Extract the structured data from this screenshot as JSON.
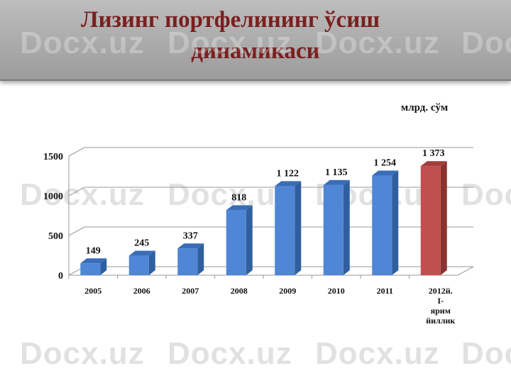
{
  "slide": {
    "title_line1": "Лизинг  портфелининг ўсиш",
    "title_line2": "динамикаси",
    "watermark": "Docx.uz"
  },
  "chart_data": {
    "type": "bar",
    "unit_label": "млрд. сўм",
    "categories": [
      "2005",
      "2006",
      "2007",
      "2008",
      "2009",
      "2010",
      "2011",
      "2012й. I- ярим йиллик"
    ],
    "values": [
      149,
      245,
      337,
      818,
      1122,
      1135,
      1254,
      1373
    ],
    "value_labels": [
      "149",
      "245",
      "337",
      "818",
      "1 122",
      "1 135",
      "1 254",
      "1 373"
    ],
    "ylim": [
      0,
      1500
    ],
    "yticks": [
      0,
      500,
      1000,
      1500
    ],
    "grid": true,
    "colors": {
      "bar_front": "#4f86d6",
      "bar_side": "#2f5f9e",
      "bar_top": "#3a6db8",
      "highlight_front": "#c0504d",
      "highlight_side": "#8c3330",
      "highlight_top": "#a33d3a"
    },
    "highlight_index": 7
  }
}
